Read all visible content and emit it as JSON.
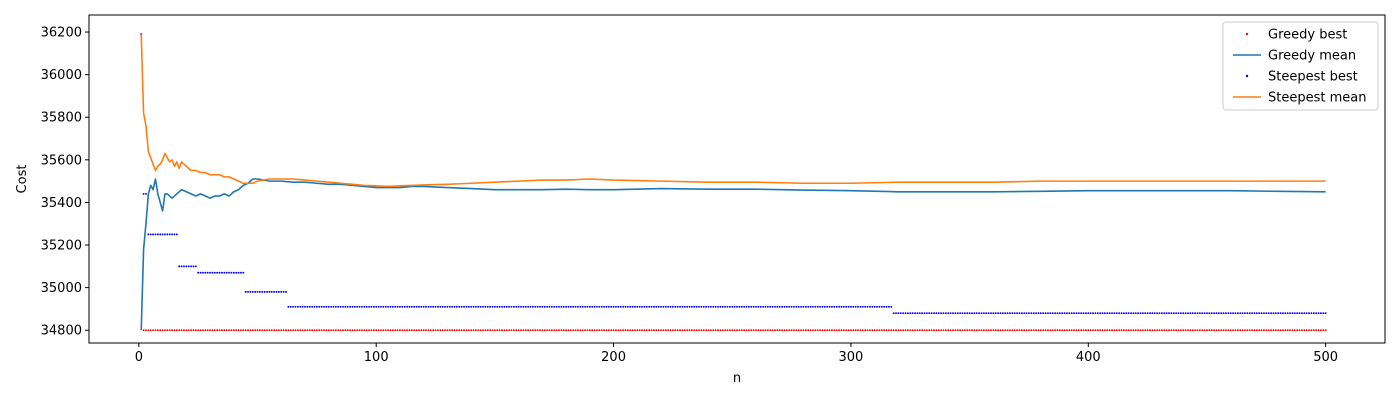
{
  "chart_data": {
    "type": "line",
    "title": "",
    "xlabel": "n",
    "ylabel": "Cost",
    "xlim": [
      -21,
      525
    ],
    "ylim": [
      34740,
      36280
    ],
    "x_ticks": [
      0,
      100,
      200,
      300,
      400,
      500
    ],
    "y_ticks": [
      34800,
      35000,
      35200,
      35400,
      35600,
      35800,
      36000,
      36200
    ],
    "grid": false,
    "legend": "top-right",
    "n_points": 500,
    "series": [
      {
        "name": "Greedy best",
        "kind": "points",
        "color": "#ff0000",
        "steps": [
          [
            1,
            36190
          ],
          [
            2,
            34800
          ]
        ]
      },
      {
        "name": "Greedy mean",
        "kind": "line",
        "color": "#1f77b4",
        "points": [
          [
            1,
            34800
          ],
          [
            2,
            35180
          ],
          [
            3,
            35300
          ],
          [
            4,
            35440
          ],
          [
            5,
            35480
          ],
          [
            6,
            35460
          ],
          [
            7,
            35510
          ],
          [
            8,
            35440
          ],
          [
            9,
            35400
          ],
          [
            10,
            35360
          ],
          [
            11,
            35440
          ],
          [
            12,
            35440
          ],
          [
            14,
            35420
          ],
          [
            16,
            35440
          ],
          [
            18,
            35460
          ],
          [
            20,
            35450
          ],
          [
            22,
            35440
          ],
          [
            24,
            35430
          ],
          [
            26,
            35440
          ],
          [
            28,
            35430
          ],
          [
            30,
            35420
          ],
          [
            32,
            35430
          ],
          [
            34,
            35430
          ],
          [
            36,
            35440
          ],
          [
            38,
            35430
          ],
          [
            40,
            35450
          ],
          [
            42,
            35460
          ],
          [
            44,
            35480
          ],
          [
            46,
            35490
          ],
          [
            48,
            35510
          ],
          [
            50,
            35510
          ],
          [
            55,
            35500
          ],
          [
            60,
            35500
          ],
          [
            65,
            35495
          ],
          [
            70,
            35495
          ],
          [
            75,
            35490
          ],
          [
            80,
            35485
          ],
          [
            85,
            35485
          ],
          [
            90,
            35480
          ],
          [
            95,
            35475
          ],
          [
            100,
            35470
          ],
          [
            105,
            35470
          ],
          [
            110,
            35470
          ],
          [
            115,
            35475
          ],
          [
            120,
            35475
          ],
          [
            130,
            35470
          ],
          [
            140,
            35465
          ],
          [
            150,
            35460
          ],
          [
            160,
            35460
          ],
          [
            170,
            35460
          ],
          [
            180,
            35462
          ],
          [
            190,
            35460
          ],
          [
            200,
            35460
          ],
          [
            220,
            35465
          ],
          [
            240,
            35462
          ],
          [
            260,
            35462
          ],
          [
            280,
            35458
          ],
          [
            300,
            35455
          ],
          [
            320,
            35450
          ],
          [
            340,
            35450
          ],
          [
            360,
            35450
          ],
          [
            380,
            35452
          ],
          [
            400,
            35455
          ],
          [
            420,
            35455
          ],
          [
            440,
            35455
          ],
          [
            460,
            35455
          ],
          [
            480,
            35452
          ],
          [
            500,
            35450
          ]
        ]
      },
      {
        "name": "Steepest best",
        "kind": "points",
        "color": "#0000ff",
        "steps": [
          [
            1,
            36190
          ],
          [
            2,
            35440
          ],
          [
            4,
            35250
          ],
          [
            17,
            35100
          ],
          [
            25,
            35070
          ],
          [
            45,
            34980
          ],
          [
            63,
            34910
          ],
          [
            318,
            34880
          ]
        ]
      },
      {
        "name": "Steepest mean",
        "kind": "line",
        "color": "#ff7f0e",
        "points": [
          [
            1,
            36190
          ],
          [
            2,
            35820
          ],
          [
            3,
            35760
          ],
          [
            4,
            35640
          ],
          [
            5,
            35610
          ],
          [
            6,
            35580
          ],
          [
            7,
            35550
          ],
          [
            8,
            35570
          ],
          [
            9,
            35580
          ],
          [
            10,
            35600
          ],
          [
            11,
            35630
          ],
          [
            12,
            35610
          ],
          [
            13,
            35590
          ],
          [
            14,
            35600
          ],
          [
            15,
            35570
          ],
          [
            16,
            35590
          ],
          [
            17,
            35560
          ],
          [
            18,
            35590
          ],
          [
            19,
            35580
          ],
          [
            20,
            35570
          ],
          [
            22,
            35550
          ],
          [
            24,
            35550
          ],
          [
            26,
            35540
          ],
          [
            28,
            35540
          ],
          [
            30,
            35530
          ],
          [
            32,
            35530
          ],
          [
            34,
            35530
          ],
          [
            36,
            35520
          ],
          [
            38,
            35520
          ],
          [
            40,
            35510
          ],
          [
            42,
            35500
          ],
          [
            44,
            35490
          ],
          [
            46,
            35490
          ],
          [
            48,
            35490
          ],
          [
            50,
            35500
          ],
          [
            55,
            35510
          ],
          [
            60,
            35510
          ],
          [
            65,
            35510
          ],
          [
            70,
            35505
          ],
          [
            75,
            35500
          ],
          [
            80,
            35495
          ],
          [
            85,
            35490
          ],
          [
            90,
            35485
          ],
          [
            95,
            35480
          ],
          [
            100,
            35478
          ],
          [
            105,
            35475
          ],
          [
            110,
            35478
          ],
          [
            115,
            35480
          ],
          [
            120,
            35482
          ],
          [
            130,
            35485
          ],
          [
            140,
            35490
          ],
          [
            150,
            35495
          ],
          [
            160,
            35500
          ],
          [
            170,
            35505
          ],
          [
            180,
            35505
          ],
          [
            190,
            35510
          ],
          [
            200,
            35505
          ],
          [
            220,
            35500
          ],
          [
            240,
            35495
          ],
          [
            260,
            35495
          ],
          [
            280,
            35490
          ],
          [
            300,
            35490
          ],
          [
            320,
            35495
          ],
          [
            340,
            35495
          ],
          [
            360,
            35495
          ],
          [
            380,
            35500
          ],
          [
            400,
            35500
          ],
          [
            420,
            35500
          ],
          [
            440,
            35500
          ],
          [
            460,
            35500
          ],
          [
            480,
            35500
          ],
          [
            500,
            35500
          ]
        ]
      }
    ]
  }
}
